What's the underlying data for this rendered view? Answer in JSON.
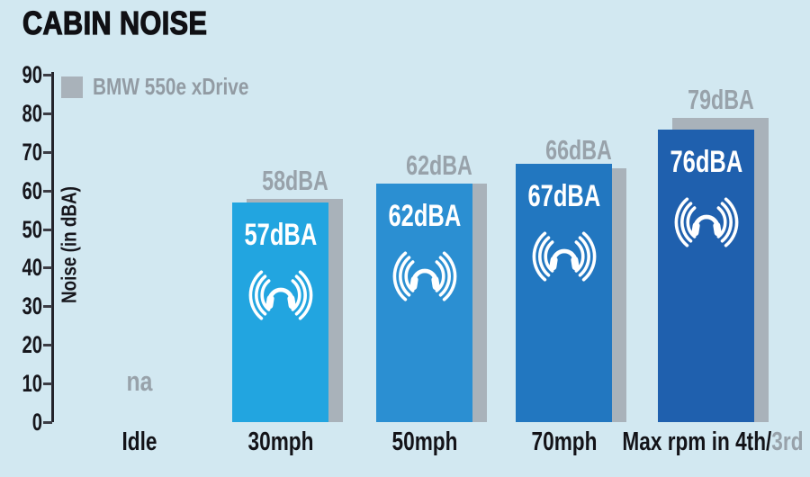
{
  "chart_data": {
    "type": "bar",
    "title": "CABIN NOISE",
    "ylabel": "Noise (in dBA)",
    "xlabel": "",
    "ylim": [
      0,
      90
    ],
    "yticks": [
      0,
      10,
      20,
      30,
      40,
      50,
      60,
      70,
      80,
      90
    ],
    "grid": false,
    "categories": [
      "Idle",
      "30mph",
      "50mph",
      "70mph",
      "Max rpm in 4th/3rd"
    ],
    "x_labels": [
      {
        "main": "Idle"
      },
      {
        "main": "30mph"
      },
      {
        "main": "50mph"
      },
      {
        "main": "70mph"
      },
      {
        "main": "Max rpm in 4th/",
        "gray_suffix": "3rd"
      }
    ],
    "na_text": "na",
    "series": [
      {
        "id": "test-car-blue",
        "values": [
          null,
          57,
          62,
          67,
          76
        ],
        "bar_labels": [
          null,
          "57dBA",
          "62dBA",
          "67dBA",
          "76dBA"
        ],
        "bar_colors": [
          null,
          "#22a5e0",
          "#2b8fd2",
          "#2277c0",
          "#1f60ae"
        ],
        "icon": "headphones-sound-waves"
      },
      {
        "id": "bmw-550e-xdrive-gray",
        "name": "BMW 550e xDrive",
        "values": [
          null,
          58,
          62,
          66,
          79
        ],
        "bar_labels": [
          null,
          "58dBA",
          "62dBA",
          "66dBA",
          "79dBA"
        ],
        "color": "#a9b2ba"
      }
    ],
    "legend": {
      "position": "top-left",
      "entries": [
        {
          "label": "BMW 550e xDrive",
          "color": "#a9b2ba"
        }
      ]
    }
  },
  "colors": {
    "background": "#d2e8f1",
    "title_text": "#101014",
    "axis_text": "#16161c",
    "axis_line": "#23232b",
    "tick_mark": "#3c3c44",
    "gray_text": "#98a2aa",
    "legend_text": "#929ba3",
    "xlabel_text": "#131318",
    "bar_value_text": "#ffffff"
  }
}
